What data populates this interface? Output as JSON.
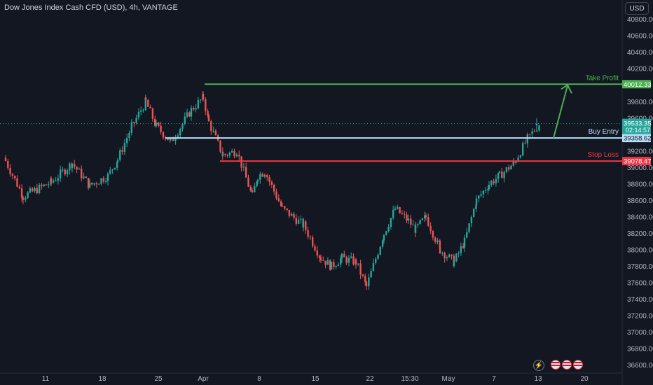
{
  "header": {
    "title": "Dow Jones Index Cash CFD (USD), 4h, VANTAGE",
    "currency_button": "USD"
  },
  "colors": {
    "background": "#131722",
    "up": "#26a69a",
    "down": "#ef5350",
    "take_profit": "#4caf50",
    "buy_entry": "#bbdefb",
    "stop_loss": "#f23645"
  },
  "chart_data": {
    "type": "candlestick",
    "title": "Dow Jones Index Cash CFD (USD), 4h, VANTAGE",
    "y_range": [
      36400,
      40900
    ],
    "y_ticks": [
      40800,
      40600,
      40400,
      40200,
      39800,
      39600,
      39200,
      39000,
      38800,
      38600,
      38400,
      38200,
      38000,
      37800,
      37600,
      37400,
      37200,
      37000,
      36800,
      36600
    ],
    "x_tick_labels": [
      "11",
      "18",
      "25",
      "Apr",
      "8",
      "15",
      "22",
      "15:30",
      "May",
      "7",
      "13",
      "20"
    ],
    "approx_close_path": [
      {
        "date": "Mar 6",
        "close": 39080
      },
      {
        "date": "Mar 8",
        "close": 38650
      },
      {
        "date": "Mar 11",
        "close": 38820
      },
      {
        "date": "Mar 13",
        "close": 39050
      },
      {
        "date": "Mar 15",
        "close": 38780
      },
      {
        "date": "Mar 18",
        "close": 38900
      },
      {
        "date": "Mar 19",
        "close": 39100
      },
      {
        "date": "Mar 20",
        "close": 39500
      },
      {
        "date": "Mar 21",
        "close": 39800
      },
      {
        "date": "Mar 22",
        "close": 39500
      },
      {
        "date": "Mar 25",
        "close": 39310
      },
      {
        "date": "Mar 27",
        "close": 39700
      },
      {
        "date": "Mar 28",
        "close": 39850
      },
      {
        "date": "Apr 1",
        "close": 39550
      },
      {
        "date": "Apr 2",
        "close": 39150
      },
      {
        "date": "Apr 3",
        "close": 39200
      },
      {
        "date": "Apr 4",
        "close": 38650
      },
      {
        "date": "Apr 5",
        "close": 38900
      },
      {
        "date": "Apr 8",
        "close": 38950
      },
      {
        "date": "Apr 10",
        "close": 38500
      },
      {
        "date": "Apr 12",
        "close": 38300
      },
      {
        "date": "Apr 15",
        "close": 37900
      },
      {
        "date": "Apr 16",
        "close": 37800
      },
      {
        "date": "Apr 17",
        "close": 37900
      },
      {
        "date": "Apr 18",
        "close": 37850
      },
      {
        "date": "Apr 19",
        "close": 37550
      },
      {
        "date": "Apr 22",
        "close": 38200
      },
      {
        "date": "Apr 23",
        "close": 38500
      },
      {
        "date": "Apr 25",
        "close": 38350
      },
      {
        "date": "Apr 26",
        "close": 38250
      },
      {
        "date": "Apr 29",
        "close": 38400
      },
      {
        "date": "Apr 30",
        "close": 38000
      },
      {
        "date": "May 1",
        "close": 37850
      },
      {
        "date": "May 2",
        "close": 38100
      },
      {
        "date": "May 3",
        "close": 38600
      },
      {
        "date": "May 6",
        "close": 38800
      },
      {
        "date": "May 7",
        "close": 38900
      },
      {
        "date": "May 8",
        "close": 39050
      },
      {
        "date": "May 9",
        "close": 39350
      },
      {
        "date": "May 10",
        "close": 39533.35
      }
    ],
    "last_price": {
      "value": "39533.35",
      "countdown": "02:14:57"
    },
    "levels": [
      {
        "name": "Take Profit",
        "value": 40012.33,
        "label": "40012.33",
        "color": "#4caf50"
      },
      {
        "name": "Buy Entry",
        "value": 39358.62,
        "label": "39358.62",
        "color": "#bbdefb"
      },
      {
        "name": "Stop Loss",
        "value": 39078.47,
        "label": "39078.47",
        "color": "#f23645"
      }
    ],
    "arrow": {
      "from": 39358.62,
      "to": 40012.33,
      "direction": "up",
      "color": "#4caf50"
    }
  }
}
